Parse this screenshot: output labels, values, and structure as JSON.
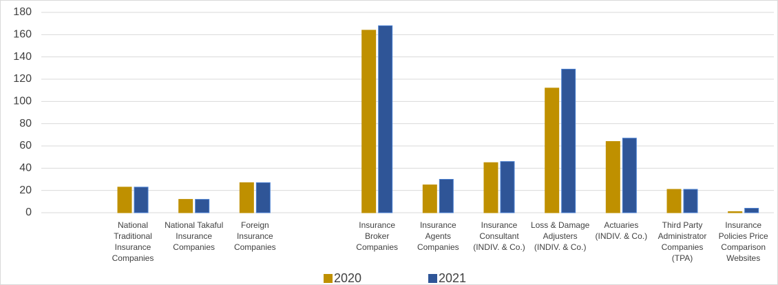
{
  "chart_data": {
    "type": "bar",
    "categories": [
      null,
      "National Traditional Insurance Companies",
      "National Takaful Insurance Companies",
      "Foreign Insurance Companies",
      null,
      "Insurance Broker Companies",
      "Insurance Agents Companies",
      "Insurance Consultant (INDIV. & Co.)",
      "Loss & Damage Adjusters (INDIV. & Co.)",
      "Actuaries (INDIV. & Co.)",
      "Third Party Administrator Companies (TPA)",
      "Insurance Policies Price Comparison Websites"
    ],
    "series": [
      {
        "name": "2020",
        "color": "#bf9000",
        "values": [
          null,
          23,
          12,
          27,
          null,
          164,
          25,
          45,
          112,
          64,
          21,
          1
        ]
      },
      {
        "name": "2021",
        "color": "#2f5597",
        "values": [
          null,
          23,
          12,
          27,
          null,
          168,
          30,
          46,
          129,
          67,
          21,
          4
        ]
      }
    ],
    "ylim": [
      0,
      180
    ],
    "yticks": [
      0,
      20,
      40,
      60,
      80,
      100,
      120,
      140,
      160,
      180
    ],
    "grid": true,
    "legend": "bottom"
  }
}
